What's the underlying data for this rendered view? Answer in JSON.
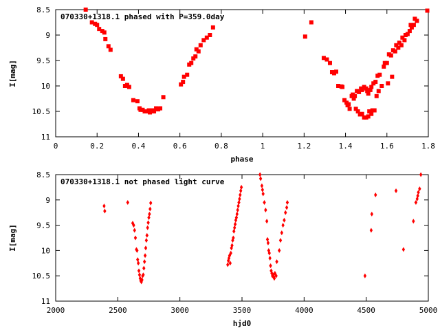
{
  "chart_data": [
    {
      "type": "scatter",
      "title": "070330+1318.1 phased with P=359.0day",
      "xlabel": "phase",
      "ylabel": "I[mag]",
      "xlim": [
        0,
        1.8
      ],
      "ylim": [
        8.5,
        11
      ],
      "y_inverted": true,
      "xticks": [
        "0",
        "0.2",
        "0.4",
        "0.6",
        "0.8",
        "1",
        "1.2",
        "1.4",
        "1.6",
        "1.8"
      ],
      "yticks": [
        "8.5",
        "9",
        "9.5",
        "10",
        "10.5",
        "11"
      ],
      "marker": "filled-square",
      "color": "#ff0000",
      "points": [
        [
          0.145,
          8.5
        ],
        [
          0.175,
          8.75
        ],
        [
          0.19,
          8.78
        ],
        [
          0.2,
          8.8
        ],
        [
          0.21,
          8.88
        ],
        [
          0.225,
          8.92
        ],
        [
          0.235,
          8.95
        ],
        [
          0.24,
          9.08
        ],
        [
          0.255,
          9.22
        ],
        [
          0.265,
          9.29
        ],
        [
          0.315,
          9.81
        ],
        [
          0.325,
          9.86
        ],
        [
          0.335,
          10.0
        ],
        [
          0.345,
          9.98
        ],
        [
          0.355,
          10.02
        ],
        [
          0.375,
          10.28
        ],
        [
          0.395,
          10.3
        ],
        [
          0.405,
          10.44
        ],
        [
          0.41,
          10.47
        ],
        [
          0.42,
          10.47
        ],
        [
          0.43,
          10.5
        ],
        [
          0.44,
          10.5
        ],
        [
          0.45,
          10.48
        ],
        [
          0.455,
          10.52
        ],
        [
          0.465,
          10.48
        ],
        [
          0.475,
          10.5
        ],
        [
          0.485,
          10.44
        ],
        [
          0.495,
          10.46
        ],
        [
          0.505,
          10.44
        ],
        [
          0.52,
          10.22
        ],
        [
          0.605,
          9.97
        ],
        [
          0.615,
          9.92
        ],
        [
          0.62,
          9.82
        ],
        [
          0.635,
          9.78
        ],
        [
          0.645,
          9.58
        ],
        [
          0.655,
          9.55
        ],
        [
          0.665,
          9.46
        ],
        [
          0.675,
          9.42
        ],
        [
          0.68,
          9.28
        ],
        [
          0.69,
          9.32
        ],
        [
          0.7,
          9.2
        ],
        [
          0.715,
          9.1
        ],
        [
          0.73,
          9.05
        ],
        [
          0.745,
          9.0
        ],
        [
          0.76,
          8.85
        ],
        [
          1.205,
          9.03
        ],
        [
          1.235,
          8.75
        ],
        [
          1.295,
          9.45
        ],
        [
          1.31,
          9.48
        ],
        [
          1.325,
          9.55
        ],
        [
          1.335,
          9.73
        ],
        [
          1.345,
          9.75
        ],
        [
          1.355,
          9.72
        ],
        [
          1.365,
          10.0
        ],
        [
          1.38,
          10.01
        ],
        [
          1.385,
          10.02
        ],
        [
          1.395,
          10.28
        ],
        [
          1.405,
          10.33
        ],
        [
          1.41,
          10.38
        ],
        [
          1.415,
          10.36
        ],
        [
          1.42,
          10.45
        ],
        [
          1.43,
          10.2
        ],
        [
          1.44,
          10.25
        ],
        [
          1.45,
          10.45
        ],
        [
          1.46,
          10.5
        ],
        [
          1.47,
          10.56
        ],
        [
          1.48,
          10.55
        ],
        [
          1.49,
          10.62
        ],
        [
          1.5,
          10.62
        ],
        [
          1.51,
          10.6
        ],
        [
          1.515,
          10.5
        ],
        [
          1.525,
          10.55
        ],
        [
          1.53,
          10.48
        ],
        [
          1.54,
          10.48
        ],
        [
          1.435,
          10.17
        ],
        [
          1.445,
          10.2
        ],
        [
          1.455,
          10.1
        ],
        [
          1.465,
          10.12
        ],
        [
          1.475,
          10.05
        ],
        [
          1.48,
          10.08
        ],
        [
          1.49,
          10.02
        ],
        [
          1.5,
          10.05
        ],
        [
          1.505,
          10.1
        ],
        [
          1.51,
          10.15
        ],
        [
          1.52,
          10.08
        ],
        [
          1.525,
          10.02
        ],
        [
          1.535,
          9.95
        ],
        [
          1.545,
          9.92
        ],
        [
          1.55,
          10.2
        ],
        [
          1.555,
          9.8
        ],
        [
          1.56,
          10.1
        ],
        [
          1.565,
          9.78
        ],
        [
          1.575,
          10.0
        ],
        [
          1.585,
          9.62
        ],
        [
          1.59,
          9.55
        ],
        [
          1.6,
          9.55
        ],
        [
          1.605,
          9.95
        ],
        [
          1.61,
          9.38
        ],
        [
          1.62,
          9.4
        ],
        [
          1.625,
          9.82
        ],
        [
          1.63,
          9.3
        ],
        [
          1.64,
          9.32
        ],
        [
          1.645,
          9.2
        ],
        [
          1.655,
          9.25
        ],
        [
          1.66,
          9.15
        ],
        [
          1.67,
          9.2
        ],
        [
          1.675,
          9.05
        ],
        [
          1.685,
          9.1
        ],
        [
          1.69,
          9.0
        ],
        [
          1.7,
          8.98
        ],
        [
          1.71,
          8.92
        ],
        [
          1.715,
          8.8
        ],
        [
          1.72,
          8.85
        ],
        [
          1.73,
          8.8
        ],
        [
          1.735,
          8.68
        ],
        [
          1.745,
          8.72
        ],
        [
          1.795,
          8.52
        ]
      ]
    },
    {
      "type": "scatter",
      "title": "070330+1318.1 not phased light curve",
      "xlabel": "hjd0",
      "ylabel": "I[mag]",
      "xlim": [
        2000,
        5000
      ],
      "ylim": [
        8.5,
        11
      ],
      "y_inverted": true,
      "xticks": [
        "2000",
        "2500",
        "3000",
        "3500",
        "4000",
        "4500",
        "5000"
      ],
      "yticks": [
        "8.5",
        "9",
        "9.5",
        "10",
        "10.5",
        "11"
      ],
      "marker": "filled-diamond",
      "color": "#ff0000",
      "points": [
        [
          2390,
          9.12
        ],
        [
          2395,
          9.22
        ],
        [
          2580,
          9.05
        ],
        [
          2620,
          9.46
        ],
        [
          2628,
          9.5
        ],
        [
          2635,
          9.6
        ],
        [
          2642,
          9.75
        ],
        [
          2650,
          9.98
        ],
        [
          2655,
          10.0
        ],
        [
          2660,
          10.18
        ],
        [
          2665,
          10.25
        ],
        [
          2670,
          10.4
        ],
        [
          2675,
          10.48
        ],
        [
          2680,
          10.55
        ],
        [
          2685,
          10.6
        ],
        [
          2690,
          10.62
        ],
        [
          2695,
          10.58
        ],
        [
          2700,
          10.5
        ],
        [
          2705,
          10.48
        ],
        [
          2710,
          10.35
        ],
        [
          2715,
          10.22
        ],
        [
          2720,
          10.1
        ],
        [
          2725,
          9.95
        ],
        [
          2730,
          9.8
        ],
        [
          2735,
          9.7
        ],
        [
          2740,
          9.55
        ],
        [
          2745,
          9.45
        ],
        [
          2750,
          9.35
        ],
        [
          2755,
          9.28
        ],
        [
          2760,
          9.18
        ],
        [
          2765,
          9.06
        ],
        [
          3385,
          10.28
        ],
        [
          3390,
          10.2
        ],
        [
          3395,
          10.15
        ],
        [
          3400,
          10.1
        ],
        [
          3405,
          10.25
        ],
        [
          3410,
          10.05
        ],
        [
          3415,
          9.95
        ],
        [
          3420,
          9.9
        ],
        [
          3425,
          9.8
        ],
        [
          3430,
          9.75
        ],
        [
          3435,
          9.62
        ],
        [
          3440,
          9.55
        ],
        [
          3445,
          9.48
        ],
        [
          3450,
          9.4
        ],
        [
          3455,
          9.35
        ],
        [
          3460,
          9.28
        ],
        [
          3465,
          9.2
        ],
        [
          3470,
          9.12
        ],
        [
          3475,
          9.05
        ],
        [
          3480,
          8.98
        ],
        [
          3485,
          8.9
        ],
        [
          3490,
          8.82
        ],
        [
          3495,
          8.75
        ],
        [
          3645,
          8.5
        ],
        [
          3650,
          8.58
        ],
        [
          3660,
          8.72
        ],
        [
          3665,
          8.8
        ],
        [
          3670,
          8.88
        ],
        [
          3680,
          9.05
        ],
        [
          3690,
          9.2
        ],
        [
          3700,
          9.42
        ],
        [
          3705,
          9.78
        ],
        [
          3710,
          9.85
        ],
        [
          3715,
          10.0
        ],
        [
          3720,
          10.05
        ],
        [
          3725,
          10.15
        ],
        [
          3730,
          10.3
        ],
        [
          3735,
          10.4
        ],
        [
          3740,
          10.45
        ],
        [
          3745,
          10.5
        ],
        [
          3750,
          10.48
        ],
        [
          3755,
          10.52
        ],
        [
          3760,
          10.55
        ],
        [
          3765,
          10.45
        ],
        [
          3775,
          10.5
        ],
        [
          3780,
          10.22
        ],
        [
          3800,
          10.0
        ],
        [
          3810,
          9.8
        ],
        [
          3820,
          9.65
        ],
        [
          3830,
          9.5
        ],
        [
          3840,
          9.4
        ],
        [
          3850,
          9.25
        ],
        [
          3860,
          9.15
        ],
        [
          3865,
          9.05
        ],
        [
          4490,
          10.5
        ],
        [
          4540,
          9.6
        ],
        [
          4545,
          9.28
        ],
        [
          4575,
          8.9
        ],
        [
          4740,
          8.82
        ],
        [
          4800,
          9.98
        ],
        [
          4880,
          9.42
        ],
        [
          4900,
          9.05
        ],
        [
          4910,
          8.98
        ],
        [
          4915,
          8.92
        ],
        [
          4920,
          8.85
        ],
        [
          4930,
          8.78
        ],
        [
          4940,
          8.5
        ]
      ]
    }
  ]
}
